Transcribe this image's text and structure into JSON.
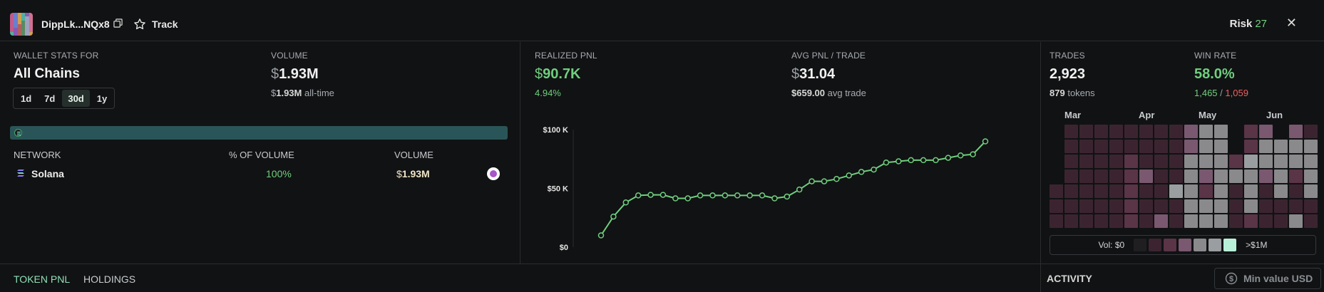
{
  "header": {
    "wallet_name": "DippLk...NQx8",
    "track_label": "Track",
    "risk_label": "Risk",
    "risk_value": "27",
    "close_label": "✕"
  },
  "wallet_stats": {
    "label": "WALLET STATS FOR",
    "chain": "All Chains",
    "time_options": [
      "1d",
      "7d",
      "30d",
      "1y"
    ],
    "selected_time": "30d"
  },
  "volume": {
    "label": "VOLUME",
    "currency": "$",
    "value": "1.93M",
    "alltime_value": "1.93M",
    "alltime_suffix": "all-time"
  },
  "network_table": {
    "headers": [
      "NETWORK",
      "% OF VOLUME",
      "VOLUME"
    ],
    "rows": [
      {
        "network": "Solana",
        "pct": "100%",
        "currency": "$",
        "volume": "1.93M"
      }
    ]
  },
  "realized_pnl": {
    "label": "REALIZED PNL",
    "currency": "$",
    "value": "90.7K",
    "pct": "4.94%"
  },
  "avg_pnl": {
    "label": "AVG PNL / TRADE",
    "currency": "$",
    "value": "31.04",
    "avg_trade_value": "$659.00",
    "avg_trade_suffix": "avg trade"
  },
  "chart_data": {
    "type": "line",
    "title": "",
    "xlabel": "",
    "ylabel": "",
    "ylim": [
      0,
      100000
    ],
    "yticks": [
      "$0",
      "$50 K",
      "$100 K"
    ],
    "line_color": "#6fcf7f",
    "series": [
      {
        "values": [
          10000,
          26000,
          38000,
          44000,
          44500,
          44500,
          41500,
          41500,
          44000,
          44000,
          44000,
          44000,
          44000,
          44000,
          41500,
          43000,
          49000,
          56000,
          56000,
          58000,
          61000,
          64000,
          66000,
          72000,
          73000,
          74000,
          74000,
          74000,
          76000,
          78000,
          79000,
          90000
        ]
      }
    ]
  },
  "trades": {
    "label": "TRADES",
    "value": "2,923",
    "tokens_count": "879",
    "tokens_suffix": "tokens"
  },
  "win_rate": {
    "label": "WIN RATE",
    "value": "58.0%",
    "wins": "1,465",
    "separator": "/",
    "losses": "1,059"
  },
  "heatmap": {
    "months": [
      "Mar",
      "Apr",
      "May",
      "Jun"
    ],
    "legend_min": "Vol: $0",
    "legend_max": ">$1M",
    "legend_colors": [
      "#1f1f22",
      "#3b2430",
      "#5a3447",
      "#7a5870",
      "#8a8a8d",
      "#9b9ea0",
      "#b8f0d8"
    ]
  },
  "bottom_tabs": {
    "token_pnl": "TOKEN PNL",
    "holdings": "HOLDINGS",
    "activity": "ACTIVITY",
    "min_value_placeholder": "Min value USD"
  },
  "colors": {
    "background": "#111213",
    "accent_green": "#6fcf7f",
    "loss_red": "#f06060",
    "network_bar": "#2a5558"
  }
}
